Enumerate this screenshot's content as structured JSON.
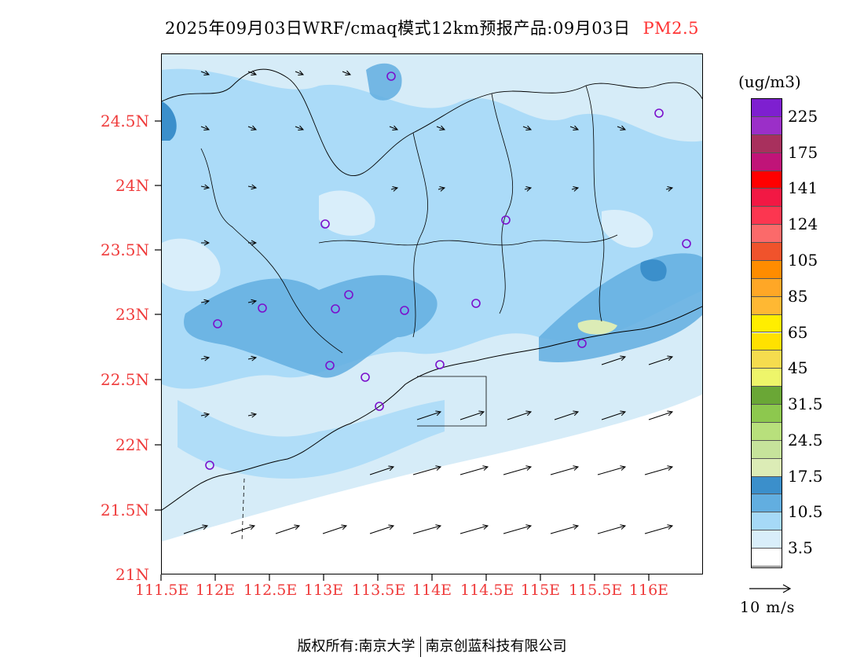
{
  "title": {
    "main": "2025年09月03日WRF/cmaq模式12km预报产品:09月03日",
    "species": "PM2.5"
  },
  "map": {
    "lat_labels": [
      "24.5N",
      "24N",
      "23.5N",
      "23N",
      "22.5N",
      "22N",
      "21.5N",
      "21N"
    ],
    "lon_labels": [
      "111.5E",
      "112E",
      "112.5E",
      "113E",
      "113.5E",
      "114E",
      "114.5E",
      "115E",
      "115.5E",
      "116E"
    ],
    "land_color": "#d6ecf8",
    "sea_color": "#ffffff",
    "boundary_color": "#000000",
    "station_marker_color": "#7b10cc"
  },
  "colorbar": {
    "unit": "(ug/m3)",
    "labels": [
      "225",
      "175",
      "141",
      "124",
      "105",
      "85",
      "65",
      "45",
      "31.5",
      "24.5",
      "17.5",
      "10.5",
      "3.5"
    ],
    "colors_top_to_bottom": [
      "#7e1fd0",
      "#9b2fc8",
      "#a8305d",
      "#c01478",
      "#ff0000",
      "#f21844",
      "#fc3650",
      "#fb6a6a",
      "#f0532c",
      "#ff8c00",
      "#ffa726",
      "#ffb833",
      "#ffee00",
      "#ffe100",
      "#f5dc4e",
      "#eef56a",
      "#6aa736",
      "#8dc84e",
      "#b8e07c",
      "#c6e39b",
      "#dcecb6",
      "#3b8fcb",
      "#62aee0",
      "#a6d9f7",
      "#d9eefa",
      "#ffffff"
    ]
  },
  "wind_legend": {
    "label": "10 m/s"
  },
  "footer": {
    "left": "版权所有:南京大学",
    "right": "南京创蓝科技有限公司"
  }
}
